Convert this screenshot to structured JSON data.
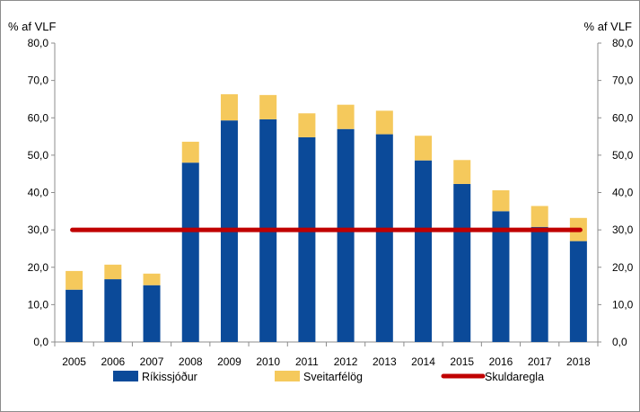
{
  "chart_data": {
    "type": "bar",
    "stacked": true,
    "categories": [
      "2005",
      "2006",
      "2007",
      "2008",
      "2009",
      "2010",
      "2011",
      "2012",
      "2013",
      "2014",
      "2015",
      "2016",
      "2017",
      "2018"
    ],
    "series": [
      {
        "name": "Ríkissjóður",
        "kind": "bar",
        "color": "#0b4a99",
        "values": [
          14.0,
          16.8,
          15.2,
          48.0,
          59.3,
          59.6,
          54.8,
          57.0,
          55.6,
          48.6,
          42.3,
          35.0,
          30.8,
          27.0
        ]
      },
      {
        "name": "Sveitarfélög",
        "kind": "bar",
        "color": "#f5c95c",
        "values": [
          5.0,
          3.9,
          3.1,
          5.6,
          7.0,
          6.5,
          6.4,
          6.5,
          6.3,
          6.6,
          6.4,
          5.6,
          5.6,
          6.2
        ]
      },
      {
        "name": "Skuldaregla",
        "kind": "line",
        "color": "#c00000",
        "values": [
          30,
          30,
          30,
          30,
          30,
          30,
          30,
          30,
          30,
          30,
          30,
          30,
          30,
          30
        ]
      }
    ],
    "ylabel_left": "% af VLF",
    "ylabel_right": "% af VLF",
    "ylim": [
      0,
      80
    ],
    "yticks": [
      "0,0",
      "10,0",
      "20,0",
      "30,0",
      "40,0",
      "50,0",
      "60,0",
      "70,0",
      "80,0"
    ],
    "grid": false,
    "legend_position": "bottom"
  }
}
